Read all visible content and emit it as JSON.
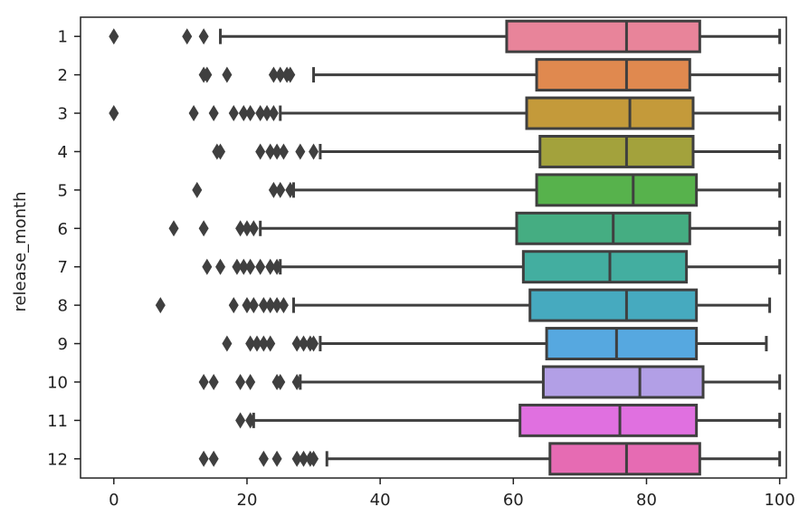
{
  "chart_data": {
    "type": "boxplot",
    "orientation": "horizontal",
    "ylabel": "release_month",
    "xlabel": "",
    "xlim": [
      -5,
      101
    ],
    "x_ticks": [
      0,
      20,
      40,
      60,
      80,
      100
    ],
    "grid": false,
    "categories": [
      "1",
      "2",
      "3",
      "4",
      "5",
      "6",
      "7",
      "8",
      "9",
      "10",
      "11",
      "12"
    ],
    "boxes": [
      {
        "label": "1",
        "color": "#e8849a",
        "whisker_low": 16,
        "q1": 59,
        "median": 77,
        "q3": 88,
        "whisker_high": 100,
        "outliers": [
          0,
          11,
          13.5
        ]
      },
      {
        "label": "2",
        "color": "#e0894f",
        "whisker_low": 30,
        "q1": 63.5,
        "median": 77,
        "q3": 86.5,
        "whisker_high": 100,
        "outliers": [
          13.5,
          14,
          17,
          24,
          25,
          26,
          26.5
        ]
      },
      {
        "label": "3",
        "color": "#c49a3a",
        "whisker_low": 25,
        "q1": 62,
        "median": 77.5,
        "q3": 87,
        "whisker_high": 100,
        "outliers": [
          0,
          12,
          15,
          18,
          19.5,
          20.5,
          22,
          23,
          24
        ]
      },
      {
        "label": "4",
        "color": "#a3a23c",
        "whisker_low": 31,
        "q1": 64,
        "median": 77,
        "q3": 87,
        "whisker_high": 100,
        "outliers": [
          15.5,
          16,
          22,
          23.5,
          24.5,
          25.5,
          28,
          30
        ]
      },
      {
        "label": "5",
        "color": "#57b24c",
        "whisker_low": 27,
        "q1": 63.5,
        "median": 78,
        "q3": 87.5,
        "whisker_high": 100,
        "outliers": [
          12.5,
          24,
          25,
          26.5
        ]
      },
      {
        "label": "6",
        "color": "#45ad82",
        "whisker_low": 22,
        "q1": 60.5,
        "median": 75,
        "q3": 86.5,
        "whisker_high": 100,
        "outliers": [
          9,
          13.5,
          19,
          20,
          21
        ]
      },
      {
        "label": "7",
        "color": "#43aea0",
        "whisker_low": 25,
        "q1": 61.5,
        "median": 74.5,
        "q3": 86,
        "whisker_high": 100,
        "outliers": [
          14,
          16,
          18.5,
          19.5,
          20.5,
          22,
          23.5,
          24.5
        ]
      },
      {
        "label": "8",
        "color": "#46aabf",
        "whisker_low": 27,
        "q1": 62.5,
        "median": 77,
        "q3": 87.5,
        "whisker_high": 98.5,
        "outliers": [
          7,
          18,
          20,
          21,
          22.5,
          23.5,
          24.5,
          25.5
        ]
      },
      {
        "label": "9",
        "color": "#56a8e0",
        "whisker_low": 31,
        "q1": 65,
        "median": 75.5,
        "q3": 87.5,
        "whisker_high": 98,
        "outliers": [
          17,
          20.5,
          21.5,
          22.5,
          23.5,
          27.5,
          28.5,
          29.5,
          30
        ]
      },
      {
        "label": "10",
        "color": "#b29fe6",
        "whisker_low": 28,
        "q1": 64.5,
        "median": 79,
        "q3": 88.5,
        "whisker_high": 100,
        "outliers": [
          13.5,
          15,
          19,
          20.5,
          24.5,
          25,
          27.5
        ]
      },
      {
        "label": "11",
        "color": "#e070e0",
        "whisker_low": 21,
        "q1": 61,
        "median": 76,
        "q3": 87.5,
        "whisker_high": 100,
        "outliers": [
          19,
          20.5
        ]
      },
      {
        "label": "12",
        "color": "#e66bb3",
        "whisker_low": 32,
        "q1": 65.5,
        "median": 77,
        "q3": 88,
        "whisker_high": 100,
        "outliers": [
          13.5,
          15,
          22.5,
          24.5,
          27.5,
          28.5,
          29.5,
          30
        ]
      }
    ]
  }
}
